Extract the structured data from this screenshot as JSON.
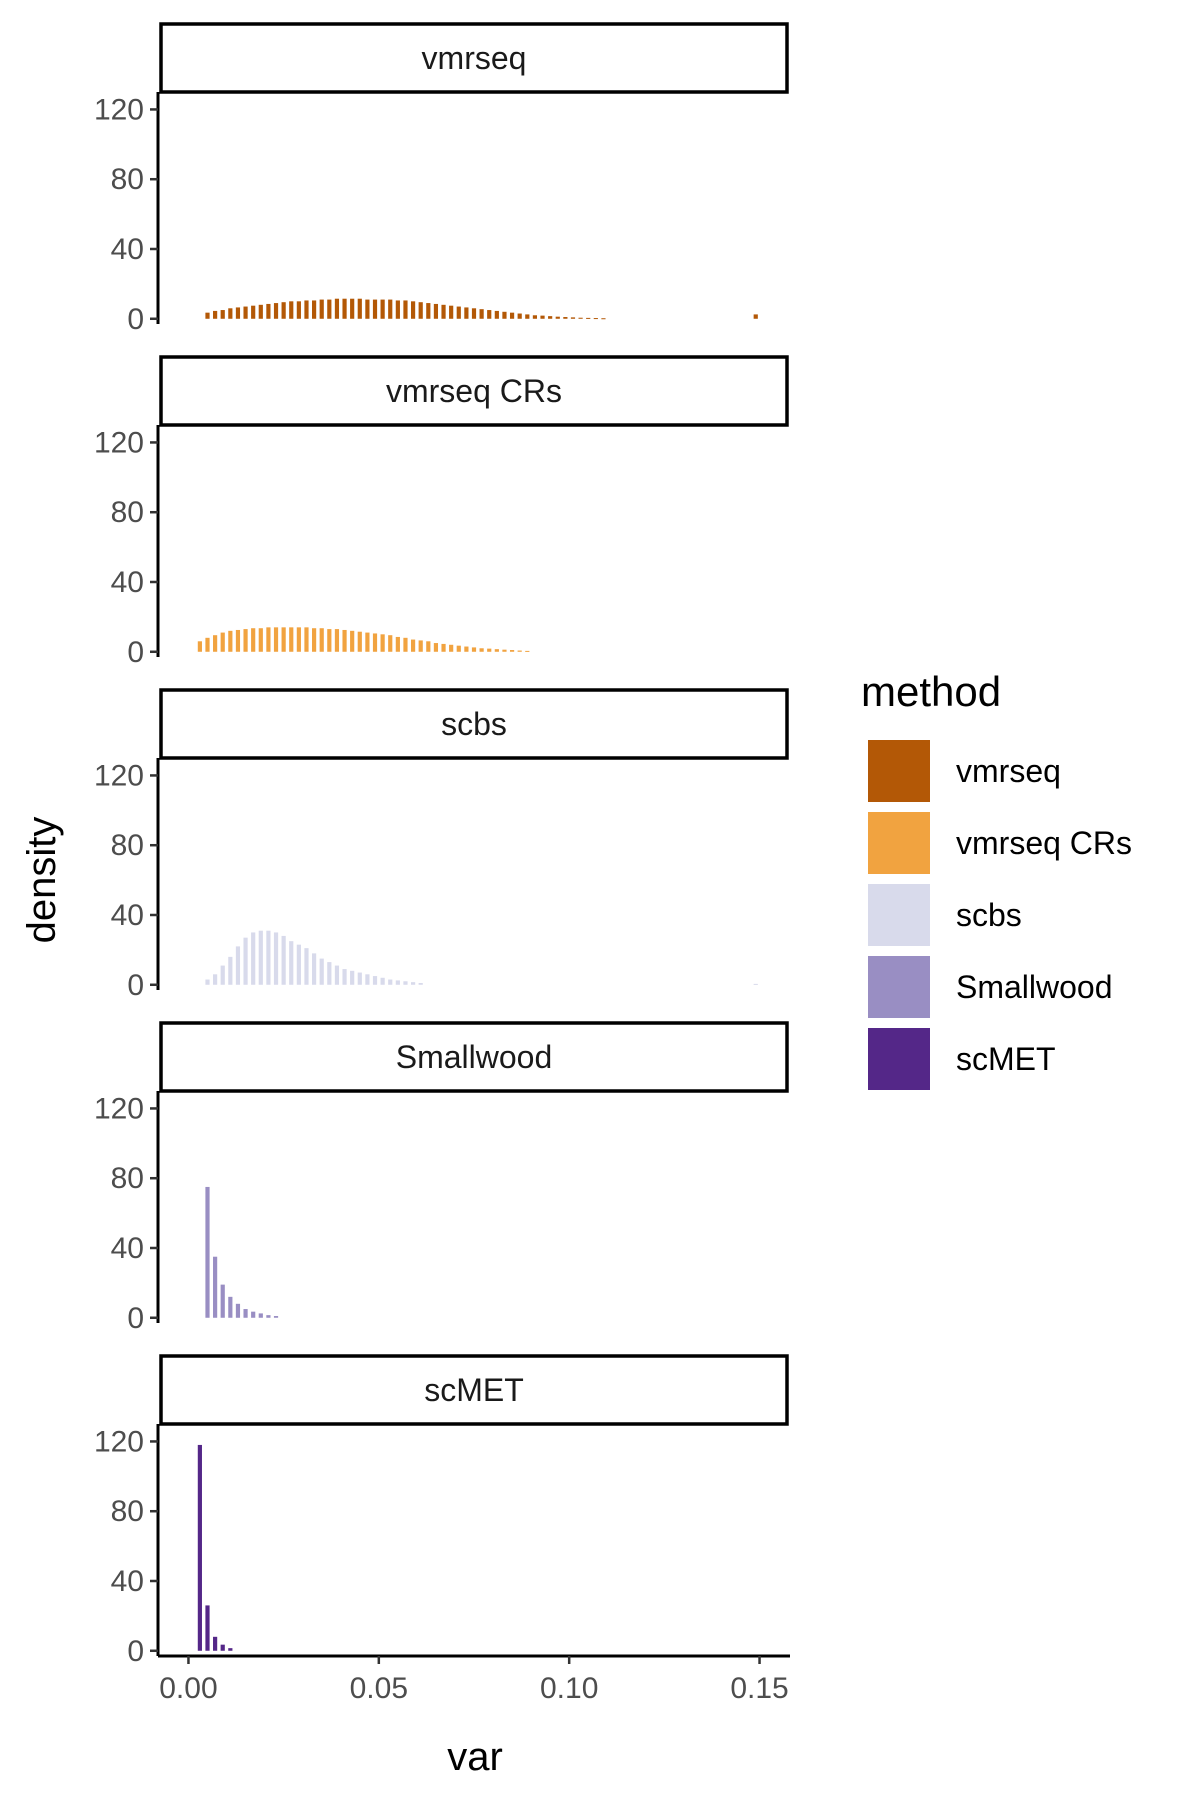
{
  "chart_data": {
    "type": "bar",
    "xlabel": "var",
    "ylabel": "density",
    "xlim": [
      -0.008,
      0.158
    ],
    "ylim": [
      -3,
      130
    ],
    "x_ticks": [
      0.0,
      0.05,
      0.1,
      0.15
    ],
    "x_tick_labels": [
      "0.00",
      "0.05",
      "0.10",
      "0.15"
    ],
    "y_ticks": [
      0,
      40,
      80,
      120
    ],
    "y_tick_labels": [
      "0",
      "40",
      "80",
      "120"
    ],
    "bin_width": 0.002,
    "legend": {
      "title": "method",
      "placement": "right",
      "entries": [
        {
          "label": "vmrseq",
          "color": "#B35806"
        },
        {
          "label": "vmrseq CRs",
          "color": "#F1A340"
        },
        {
          "label": "scbs",
          "color": "#D8DAEB"
        },
        {
          "label": "Smallwood",
          "color": "#998EC3"
        },
        {
          "label": "scMET",
          "color": "#542788"
        }
      ]
    },
    "panels": [
      {
        "name": "vmrseq",
        "color": "#B35806",
        "x": [
          0.005,
          0.007,
          0.009,
          0.011,
          0.013,
          0.015,
          0.017,
          0.019,
          0.021,
          0.023,
          0.025,
          0.027,
          0.029,
          0.031,
          0.033,
          0.035,
          0.037,
          0.039,
          0.041,
          0.043,
          0.045,
          0.047,
          0.049,
          0.051,
          0.053,
          0.055,
          0.057,
          0.059,
          0.061,
          0.063,
          0.065,
          0.067,
          0.069,
          0.071,
          0.073,
          0.075,
          0.077,
          0.079,
          0.081,
          0.083,
          0.085,
          0.087,
          0.089,
          0.091,
          0.093,
          0.095,
          0.097,
          0.099,
          0.101,
          0.103,
          0.105,
          0.107,
          0.109,
          0.149
        ],
        "values": [
          3.5,
          4.5,
          5,
          6,
          6.5,
          7,
          7.5,
          8,
          8.5,
          9,
          9.5,
          10,
          10,
          10.5,
          10.5,
          11,
          11,
          11.5,
          11.5,
          11.5,
          11.5,
          11,
          11,
          11,
          11,
          10.5,
          10.5,
          10,
          9.5,
          9,
          8.5,
          8,
          7.5,
          7,
          6.5,
          6,
          5.5,
          5,
          4.5,
          4,
          3.5,
          3,
          2.5,
          2,
          1.8,
          1.5,
          1.2,
          1,
          0.8,
          0.6,
          0.5,
          0.4,
          0.3,
          2.5
        ]
      },
      {
        "name": "vmrseq CRs",
        "color": "#F1A340",
        "x": [
          0.003,
          0.005,
          0.007,
          0.009,
          0.011,
          0.013,
          0.015,
          0.017,
          0.019,
          0.021,
          0.023,
          0.025,
          0.027,
          0.029,
          0.031,
          0.033,
          0.035,
          0.037,
          0.039,
          0.041,
          0.043,
          0.045,
          0.047,
          0.049,
          0.051,
          0.053,
          0.055,
          0.057,
          0.059,
          0.061,
          0.063,
          0.065,
          0.067,
          0.069,
          0.071,
          0.073,
          0.075,
          0.077,
          0.079,
          0.081,
          0.083,
          0.085,
          0.087,
          0.089
        ],
        "values": [
          6,
          8,
          9.5,
          11,
          12,
          12.5,
          13,
          13.5,
          13.5,
          14,
          14,
          14,
          14,
          14,
          14,
          13.5,
          13.5,
          13,
          13,
          12.5,
          12,
          11.5,
          11,
          10.5,
          10,
          9.5,
          8.5,
          8,
          7,
          6.5,
          6,
          5,
          4.5,
          4,
          3.5,
          3,
          2.5,
          2,
          1.8,
          1.5,
          1.2,
          1,
          0.7,
          0.5
        ]
      },
      {
        "name": "scbs",
        "color": "#D8DAEB",
        "x": [
          0.005,
          0.007,
          0.009,
          0.011,
          0.013,
          0.015,
          0.017,
          0.019,
          0.021,
          0.023,
          0.025,
          0.027,
          0.029,
          0.031,
          0.033,
          0.035,
          0.037,
          0.039,
          0.041,
          0.043,
          0.045,
          0.047,
          0.049,
          0.051,
          0.053,
          0.055,
          0.057,
          0.059,
          0.061,
          0.149
        ],
        "values": [
          3,
          6,
          11,
          16,
          22,
          27,
          30,
          31,
          31,
          30,
          28,
          25,
          23,
          21,
          18,
          15,
          13,
          11,
          9,
          8,
          7,
          6,
          5,
          4,
          3,
          2.5,
          2,
          1.5,
          1,
          0.5
        ]
      },
      {
        "name": "Smallwood",
        "color": "#998EC3",
        "x": [
          0.005,
          0.007,
          0.009,
          0.011,
          0.013,
          0.015,
          0.017,
          0.019,
          0.021,
          0.023
        ],
        "values": [
          75,
          35,
          19,
          12,
          8,
          5,
          3.5,
          2.5,
          1.5,
          1
        ]
      },
      {
        "name": "scMET",
        "color": "#542788",
        "x": [
          0.003,
          0.005,
          0.007,
          0.009,
          0.011
        ],
        "values": [
          118,
          26,
          8,
          3.5,
          1.5
        ]
      }
    ]
  }
}
